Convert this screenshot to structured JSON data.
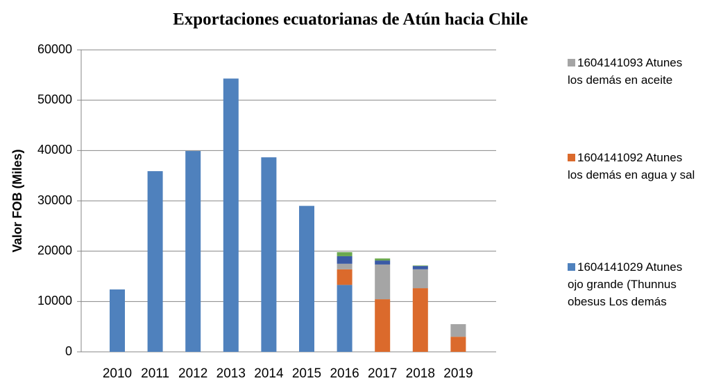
{
  "chart_data": {
    "type": "stacked_bar",
    "title": "Exportaciones ecuatorianas de Atún hacia Chile",
    "y_label": "Valor FOB (Miles)",
    "categories": [
      "2010",
      "2011",
      "2012",
      "2013",
      "2014",
      "2015",
      "2016",
      "2017",
      "2018",
      "2019"
    ],
    "series": [
      {
        "name": "1604141029 Atunes ojo grande (Thunnus obesus Los demás",
        "color": "#4f81bd",
        "values": [
          12400,
          35900,
          39900,
          54300,
          38650,
          29000,
          13300,
          0,
          0,
          0
        ]
      },
      {
        "name": "1604141092 Atunes los demás en agua y sal",
        "color": "#db6a2c",
        "values": [
          0,
          0,
          0,
          0,
          0,
          0,
          3100,
          10450,
          12650,
          3000
        ]
      },
      {
        "name": "1604141093 Atunes los demás en aceite",
        "color": "#a5a5a5",
        "values": [
          0,
          0,
          0,
          0,
          0,
          0,
          1100,
          6900,
          3750,
          2500
        ]
      },
      {
        "color": "#3a5aa5",
        "values": [
          0,
          0,
          0,
          0,
          0,
          0,
          1500,
          800,
          650,
          0
        ]
      },
      {
        "color": "#6aa84f",
        "values": [
          0,
          0,
          0,
          0,
          0,
          0,
          800,
          400,
          100,
          0
        ]
      }
    ],
    "ylim": [
      0,
      60000
    ],
    "yticks": [
      0,
      10000,
      20000,
      30000,
      40000,
      50000,
      60000
    ],
    "grid": true,
    "legend": "right"
  }
}
